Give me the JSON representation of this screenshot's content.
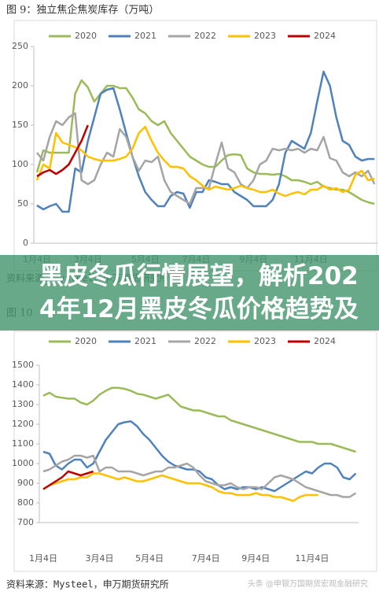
{
  "banner": "黑皮冬瓜行情展望，解析2024年12月黑皮冬瓜价格趋势及",
  "watermark": "头条 @申银万国期货宏观金融研究",
  "chart_data": [
    {
      "type": "line",
      "title": "图 9：独立焦企焦炭库存（万吨）",
      "source": "资料来源：Mysteel，申万期货研究所",
      "categories": [
        "1月4日",
        null,
        null,
        null,
        null,
        null,
        null,
        null,
        "3月4日",
        null,
        null,
        null,
        null,
        null,
        null,
        null,
        null,
        "5月4日",
        null,
        null,
        null,
        null,
        null,
        null,
        null,
        "7月4日",
        null,
        null,
        null,
        null,
        null,
        null,
        null,
        null,
        "9月4日",
        null,
        null,
        null,
        null,
        null,
        null,
        null,
        null,
        "11月4日",
        null,
        null,
        null,
        null,
        null,
        null,
        null,
        null,
        null,
        null
      ],
      "ylim": [
        0,
        250
      ],
      "yticks": [
        0,
        50,
        100,
        150,
        200,
        250
      ],
      "legend": "top",
      "series": [
        {
          "name": "2020",
          "color": "#9bbb59",
          "values": [
            90,
            118,
            115,
            115,
            115,
            115,
            190,
            207,
            198,
            180,
            190,
            200,
            200,
            197,
            197,
            185,
            170,
            165,
            155,
            150,
            155,
            140,
            130,
            120,
            110,
            105,
            100,
            97,
            97,
            105,
            112,
            113,
            112,
            95,
            90,
            88,
            88,
            87,
            88,
            85,
            80,
            80,
            78,
            75,
            78,
            72,
            70,
            68,
            68,
            65,
            60,
            55,
            52,
            50
          ]
        },
        {
          "name": "2021",
          "color": "#4f81bd",
          "values": [
            48,
            43,
            47,
            50,
            40,
            40,
            95,
            90,
            130,
            160,
            190,
            195,
            197,
            170,
            140,
            110,
            85,
            65,
            55,
            47,
            47,
            60,
            65,
            63,
            45,
            65,
            65,
            80,
            78,
            75,
            75,
            65,
            60,
            55,
            47,
            47,
            47,
            55,
            75,
            115,
            130,
            125,
            120,
            140,
            180,
            218,
            200,
            160,
            130,
            125,
            110,
            105,
            107,
            107
          ]
        },
        {
          "name": "2022",
          "color": "#a5a5a5",
          "values": [
            115,
            105,
            135,
            155,
            150,
            160,
            165,
            80,
            75,
            80,
            100,
            115,
            110,
            145,
            135,
            110,
            92,
            105,
            103,
            110,
            80,
            65,
            60,
            55,
            50,
            70,
            70,
            70,
            100,
            128,
            95,
            90,
            75,
            70,
            80,
            100,
            105,
            120,
            118,
            120,
            118,
            120,
            115,
            120,
            118,
            135,
            108,
            105,
            90,
            85,
            90,
            85,
            92,
            75
          ]
        },
        {
          "name": "2023",
          "color": "#ffc000",
          "values": [
            80,
            100,
            95,
            140,
            128,
            125,
            122,
            118,
            110,
            107,
            105,
            105,
            105,
            107,
            110,
            120,
            140,
            148,
            130,
            115,
            105,
            97,
            97,
            95,
            85,
            80,
            73,
            68,
            72,
            70,
            68,
            70,
            73,
            70,
            68,
            65,
            65,
            68,
            63,
            60,
            63,
            65,
            62,
            68,
            68,
            73,
            68,
            70,
            65,
            68,
            87,
            92,
            80,
            82
          ]
        },
        {
          "name": "2024",
          "color": "#c00000",
          "values": [
            85,
            90,
            93,
            88,
            93,
            100,
            115,
            130,
            150,
            null,
            null,
            null,
            null,
            null,
            null,
            null,
            null,
            null,
            null,
            null,
            null,
            null,
            null,
            null,
            null,
            null,
            null,
            null,
            null,
            null,
            null,
            null,
            null,
            null,
            null,
            null,
            null,
            null,
            null,
            null,
            null,
            null,
            null,
            null,
            null,
            null,
            null,
            null,
            null,
            null,
            null,
            null,
            null,
            null
          ]
        }
      ]
    },
    {
      "type": "line",
      "title": "图 10",
      "source": "资料来源：Mysteel，申万期货研究所",
      "categories": [
        "1月4日",
        null,
        null,
        null,
        null,
        null,
        null,
        null,
        null,
        "3月4日",
        null,
        null,
        null,
        null,
        null,
        null,
        null,
        "5月4日",
        null,
        null,
        null,
        null,
        null,
        null,
        null,
        null,
        "7月4日",
        null,
        null,
        null,
        null,
        null,
        null,
        null,
        "9月4日",
        null,
        null,
        null,
        null,
        null,
        null,
        null,
        null,
        "11月4日",
        null,
        null,
        null,
        null,
        null,
        null,
        null
      ],
      "ylim": [
        700,
        1500
      ],
      "yticks": [
        700,
        800,
        900,
        1000,
        1100,
        1200,
        1300,
        1400,
        1500
      ],
      "legend": "top",
      "series": [
        {
          "name": "2020",
          "color": "#9bbb59",
          "values": [
            1345,
            1360,
            1340,
            1335,
            1330,
            1330,
            1310,
            1300,
            1320,
            1350,
            1370,
            1385,
            1385,
            1380,
            1370,
            1355,
            1350,
            1340,
            1330,
            1340,
            1350,
            1320,
            1290,
            1280,
            1270,
            1270,
            1260,
            1250,
            1240,
            1240,
            1220,
            1210,
            1200,
            1190,
            1180,
            1170,
            1160,
            1150,
            1140,
            1130,
            1120,
            1110,
            1110,
            1110,
            1100,
            1100,
            1100,
            1090,
            1080,
            1070,
            1060
          ]
        },
        {
          "name": "2021",
          "color": "#4f81bd",
          "values": [
            1060,
            1050,
            990,
            970,
            1000,
            1020,
            1020,
            980,
            1000,
            1060,
            1120,
            1160,
            1200,
            1210,
            1215,
            1190,
            1150,
            1120,
            1080,
            1040,
            1010,
            990,
            980,
            970,
            970,
            960,
            930,
            920,
            890,
            870,
            880,
            870,
            880,
            880,
            870,
            880,
            870,
            860,
            880,
            900,
            920,
            940,
            960,
            950,
            980,
            1000,
            1000,
            980,
            930,
            920,
            950
          ]
        },
        {
          "name": "2022",
          "color": "#a5a5a5",
          "values": [
            960,
            970,
            990,
            1010,
            1020,
            1040,
            1040,
            1030,
            1040,
            960,
            980,
            980,
            960,
            960,
            960,
            950,
            940,
            950,
            960,
            960,
            980,
            980,
            990,
            1000,
            980,
            940,
            910,
            900,
            890,
            890,
            900,
            880,
            870,
            880,
            880,
            870,
            900,
            930,
            940,
            930,
            920,
            900,
            880,
            870,
            860,
            850,
            840,
            840,
            830,
            830,
            850
          ]
        },
        {
          "name": "2023",
          "color": "#ffc000",
          "values": [
            870,
            890,
            900,
            910,
            920,
            920,
            930,
            930,
            950,
            950,
            940,
            930,
            920,
            930,
            920,
            910,
            910,
            920,
            930,
            940,
            930,
            920,
            910,
            900,
            900,
            900,
            890,
            880,
            860,
            850,
            850,
            840,
            840,
            840,
            850,
            840,
            840,
            830,
            830,
            820,
            810,
            830,
            840,
            840,
            840,
            null,
            null,
            null,
            null,
            null,
            null
          ]
        },
        {
          "name": "2024",
          "color": "#c00000",
          "values": [
            870,
            890,
            910,
            930,
            960,
            950,
            940,
            950,
            960,
            null,
            null,
            null,
            null,
            null,
            null,
            null,
            null,
            null,
            null,
            null,
            null,
            null,
            null,
            null,
            null,
            null,
            null,
            null,
            null,
            null,
            null,
            null,
            null,
            null,
            null,
            null,
            null,
            null,
            null,
            null,
            null,
            null,
            null,
            null,
            null,
            null,
            null,
            null,
            null,
            null,
            null
          ]
        }
      ]
    }
  ]
}
